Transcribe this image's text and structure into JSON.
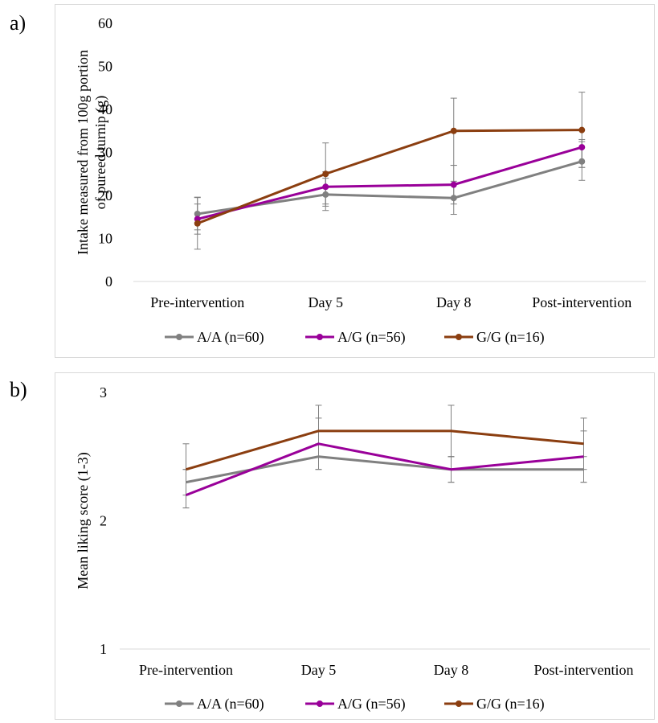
{
  "panels": [
    "a)",
    "b)"
  ],
  "chart_data": [
    {
      "type": "line",
      "title": "",
      "xlabel": "",
      "ylabel_lines": [
        "Intake measured from 100g portion",
        "of pureed turnip (g)"
      ],
      "categories": [
        "Pre-intervention",
        "Day 5",
        "Day 8",
        "Post-intervention"
      ],
      "ylim": [
        0,
        60
      ],
      "yticks": [
        0,
        10,
        20,
        30,
        40,
        50,
        60
      ],
      "grid": false,
      "legend": "bottom",
      "series": [
        {
          "name": "A/A (n=60)",
          "color": "#808080",
          "values": [
            15.7,
            20.2,
            19.4,
            27.9
          ],
          "err_low": [
            11.0,
            16.5,
            15.6,
            23.5
          ],
          "err_high": [
            19.6,
            24.0,
            23.3,
            32.5
          ]
        },
        {
          "name": "A/G (n=56)",
          "color": "#990099",
          "values": [
            14.5,
            22.0,
            22.5,
            31.2
          ],
          "err_low": [
            12.0,
            17.5,
            18.0,
            26.5
          ],
          "err_high": [
            18.0,
            25.5,
            27.0,
            33.0
          ]
        },
        {
          "name": "G/G (n=16)",
          "color": "#8B3E10",
          "values": [
            13.5,
            25.0,
            35.0,
            35.2
          ],
          "err_low": [
            7.5,
            18.0,
            27.0,
            26.5
          ],
          "err_high": [
            19.5,
            32.2,
            42.6,
            44.0
          ]
        }
      ]
    },
    {
      "type": "line",
      "title": "",
      "xlabel": "",
      "ylabel": "Mean liking score (1-3)",
      "categories": [
        "Pre-intervention",
        "Day 5",
        "Day 8",
        "Post-intervention"
      ],
      "ylim": [
        1,
        3
      ],
      "yticks": [
        1,
        2,
        3
      ],
      "grid": false,
      "legend": "bottom",
      "series": [
        {
          "name": "A/A (n=60)",
          "color": "#808080",
          "values": [
            2.3,
            2.5,
            2.4,
            2.4
          ],
          "err_low": [
            2.1,
            2.4,
            2.3,
            2.3
          ],
          "err_high": [
            2.4,
            2.6,
            2.5,
            2.5
          ]
        },
        {
          "name": "A/G (n=56)",
          "color": "#990099",
          "values": [
            2.2,
            2.6,
            2.4,
            2.5
          ],
          "err_low": [
            2.1,
            2.4,
            2.3,
            2.3
          ],
          "err_high": [
            2.4,
            2.8,
            2.5,
            2.7
          ]
        },
        {
          "name": "G/G (n=16)",
          "color": "#8B3E10",
          "values": [
            2.4,
            2.7,
            2.7,
            2.6
          ],
          "err_low": [
            2.2,
            2.5,
            2.5,
            2.4
          ],
          "err_high": [
            2.6,
            2.9,
            2.9,
            2.8
          ]
        }
      ]
    }
  ]
}
